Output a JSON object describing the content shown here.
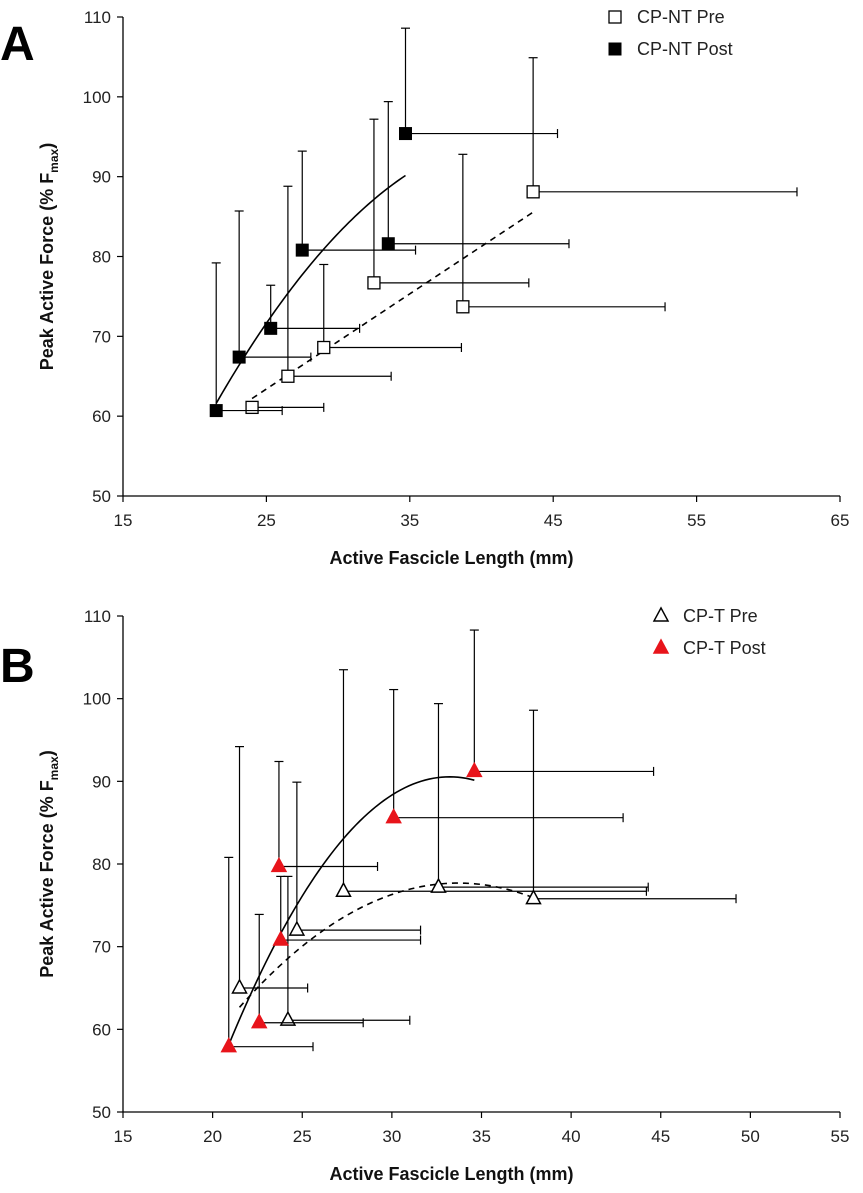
{
  "figure_labels": {
    "panel_a": "A",
    "panel_b": "B"
  },
  "chart_data": [
    {
      "type": "scatter",
      "panel": "A",
      "xlabel": "Active Fascicle Length (mm)",
      "ylabel": "Peak Active Force (% F",
      "ylabel_sub": "max",
      "ylabel_close": ")",
      "xlim": [
        15,
        65
      ],
      "ylim": [
        50,
        110
      ],
      "xticks": [
        15,
        25,
        35,
        45,
        55,
        65
      ],
      "yticks": [
        50,
        60,
        70,
        80,
        90,
        100,
        110
      ],
      "legend": [
        "CP-NT Pre",
        "CP-NT Post"
      ],
      "series": [
        {
          "name": "CP-NT Pre",
          "marker": "square-open",
          "color": "#000000",
          "points": [
            {
              "x": 24.0,
              "y": 61.1,
              "yerr": 0,
              "xerr": 5.0
            },
            {
              "x": 26.5,
              "y": 65.0,
              "yerr": 23.8,
              "xerr": 7.2
            },
            {
              "x": 29.0,
              "y": 68.6,
              "yerr": 10.4,
              "xerr": 9.6
            },
            {
              "x": 32.5,
              "y": 76.7,
              "yerr": 20.5,
              "xerr": 10.8
            },
            {
              "x": 38.7,
              "y": 73.7,
              "yerr": 19.1,
              "xerr": 14.1
            },
            {
              "x": 43.6,
              "y": 88.1,
              "yerr": 16.8,
              "xerr": 18.4
            }
          ],
          "trend": "dashed"
        },
        {
          "name": "CP-NT Post",
          "marker": "square-filled",
          "color": "#000000",
          "points": [
            {
              "x": 21.5,
              "y": 60.7,
              "yerr": 18.5,
              "xerr": 4.6
            },
            {
              "x": 23.1,
              "y": 67.4,
              "yerr": 18.3,
              "xerr": 5.0
            },
            {
              "x": 25.3,
              "y": 71.0,
              "yerr": 5.4,
              "xerr": 6.2
            },
            {
              "x": 27.5,
              "y": 80.8,
              "yerr": 12.4,
              "xerr": 7.9
            },
            {
              "x": 33.5,
              "y": 81.6,
              "yerr": 17.8,
              "xerr": 12.6
            },
            {
              "x": 34.7,
              "y": 95.4,
              "yerr": 13.2,
              "xerr": 10.6
            }
          ],
          "trend": "solid"
        }
      ]
    },
    {
      "type": "scatter",
      "panel": "B",
      "xlabel": "Active Fascicle Length (mm)",
      "ylabel": "Peak Active Force (% F",
      "ylabel_sub": "max",
      "ylabel_close": ")",
      "xlim": [
        15,
        55
      ],
      "ylim": [
        50,
        110
      ],
      "xticks": [
        15,
        20,
        25,
        30,
        35,
        40,
        45,
        50,
        55
      ],
      "yticks": [
        50,
        60,
        70,
        80,
        90,
        100,
        110
      ],
      "legend": [
        "CP-T Pre",
        "CP-T Post"
      ],
      "series": [
        {
          "name": "CP-T Pre",
          "marker": "triangle-open",
          "color": "#000000",
          "points": [
            {
              "x": 21.5,
              "y": 65.0,
              "yerr": 29.2,
              "xerr": 3.8
            },
            {
              "x": 24.2,
              "y": 61.1,
              "yerr": 17.4,
              "xerr": 6.8
            },
            {
              "x": 24.7,
              "y": 72.0,
              "yerr": 17.9,
              "xerr": 6.9
            },
            {
              "x": 27.3,
              "y": 76.7,
              "yerr": 26.8,
              "xerr": 16.9
            },
            {
              "x": 32.6,
              "y": 77.2,
              "yerr": 22.2,
              "xerr": 11.7
            },
            {
              "x": 37.9,
              "y": 75.8,
              "yerr": 22.8,
              "xerr": 11.3
            }
          ],
          "trend": "dashed"
        },
        {
          "name": "CP-T Post",
          "marker": "triangle-filled",
          "color": "#e8141b",
          "points": [
            {
              "x": 20.9,
              "y": 57.9,
              "yerr": 22.9,
              "xerr": 4.7
            },
            {
              "x": 22.6,
              "y": 60.8,
              "yerr": 13.1,
              "xerr": 5.8
            },
            {
              "x": 23.8,
              "y": 70.8,
              "yerr": 7.7,
              "xerr": 7.8
            },
            {
              "x": 23.7,
              "y": 79.7,
              "yerr": 12.7,
              "xerr": 5.5
            },
            {
              "x": 30.1,
              "y": 85.6,
              "yerr": 15.5,
              "xerr": 12.8
            },
            {
              "x": 34.6,
              "y": 91.2,
              "yerr": 17.1,
              "xerr": 10.0
            }
          ],
          "trend": "solid"
        }
      ]
    }
  ]
}
